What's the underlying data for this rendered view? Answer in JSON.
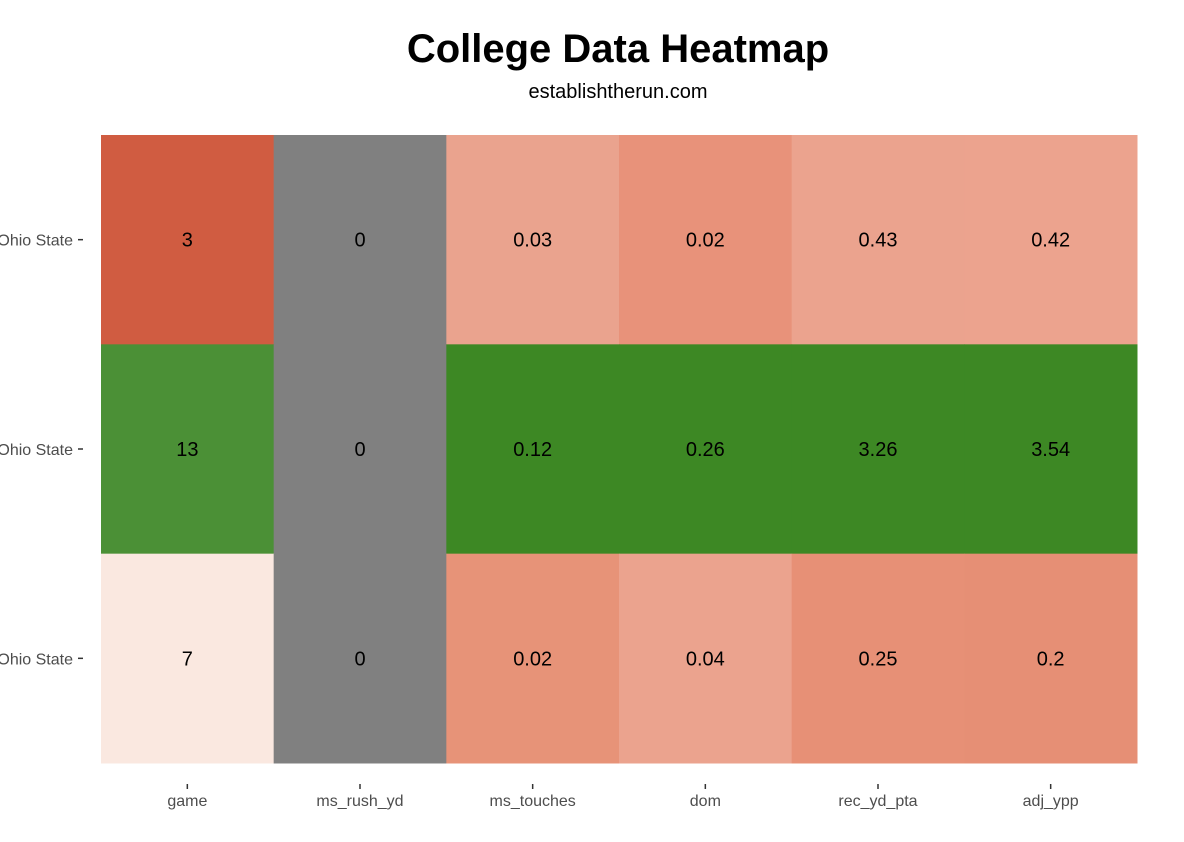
{
  "chart_data": {
    "type": "heatmap",
    "title": "College Data Heatmap",
    "subtitle": "establishtherun.com",
    "xlabel": "",
    "ylabel": "",
    "grid": false,
    "legend": "none",
    "columns": [
      "game",
      "ms_rush_yd",
      "ms_touches",
      "dom",
      "rec_yd_pta",
      "adj_ypp"
    ],
    "rows": [
      "Ohio State",
      "Ohio State",
      "Ohio State"
    ],
    "values": [
      [
        3,
        0,
        0.03,
        0.02,
        0.43,
        0.42
      ],
      [
        13,
        0,
        0.12,
        0.26,
        3.26,
        3.54
      ],
      [
        7,
        0,
        0.02,
        0.04,
        0.25,
        0.2
      ]
    ],
    "colors": [
      [
        "#d05c41",
        "#808080",
        "#eaa38e",
        "#e8927a",
        "#eba38e",
        "#eca38e"
      ],
      [
        "#4b9036",
        "#808080",
        "#3d8824",
        "#3d8824",
        "#3d8824",
        "#3d8824"
      ],
      [
        "#fae8e0",
        "#808080",
        "#e79378",
        "#eba38e",
        "#e79076",
        "#e68f75"
      ]
    ]
  }
}
